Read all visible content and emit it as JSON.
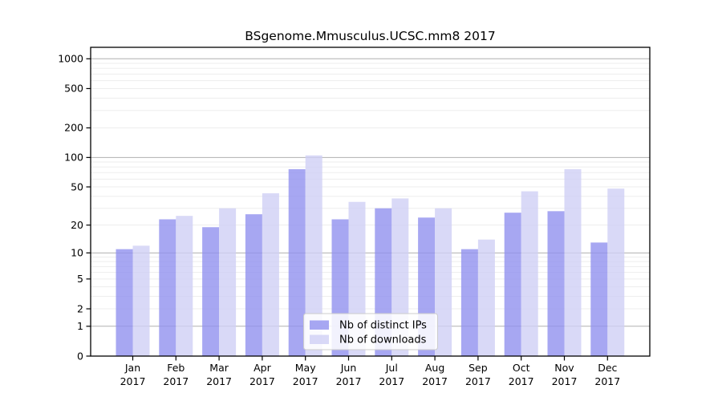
{
  "chart_data": {
    "type": "bar",
    "title": "BSgenome.Mmusculus.UCSC.mm8 2017",
    "categories": [
      "Jan",
      "Feb",
      "Mar",
      "Apr",
      "May",
      "Jun",
      "Jul",
      "Aug",
      "Sep",
      "Oct",
      "Nov",
      "Dec"
    ],
    "x_tick_year": "2017",
    "series": [
      {
        "name": "Nb of distinct IPs",
        "color": "#a7a7f2",
        "values": [
          11,
          23,
          19,
          26,
          76,
          23,
          30,
          24,
          11,
          27,
          28,
          13
        ]
      },
      {
        "name": "Nb of downloads",
        "color": "#d9d9f7",
        "values": [
          12,
          25,
          30,
          43,
          105,
          35,
          38,
          30,
          14,
          45,
          76,
          48
        ]
      }
    ],
    "y_axis": {
      "scale": "log1p",
      "ticks": [
        0,
        1,
        2,
        5,
        10,
        20,
        50,
        100,
        200,
        500,
        1000
      ],
      "range": [
        0,
        1000
      ]
    },
    "grid": {
      "major": [
        1,
        10,
        100,
        1000
      ],
      "minor": [
        2,
        3,
        4,
        5,
        6,
        7,
        8,
        9,
        20,
        30,
        40,
        50,
        60,
        70,
        80,
        90,
        200,
        300,
        400,
        500,
        600,
        700,
        800,
        900
      ],
      "major_color": "#b0b0b0",
      "minor_color": "#ededed"
    },
    "legend": {
      "position": "bottom-center",
      "entries": [
        "Nb of distinct IPs",
        "Nb of downloads"
      ]
    }
  }
}
